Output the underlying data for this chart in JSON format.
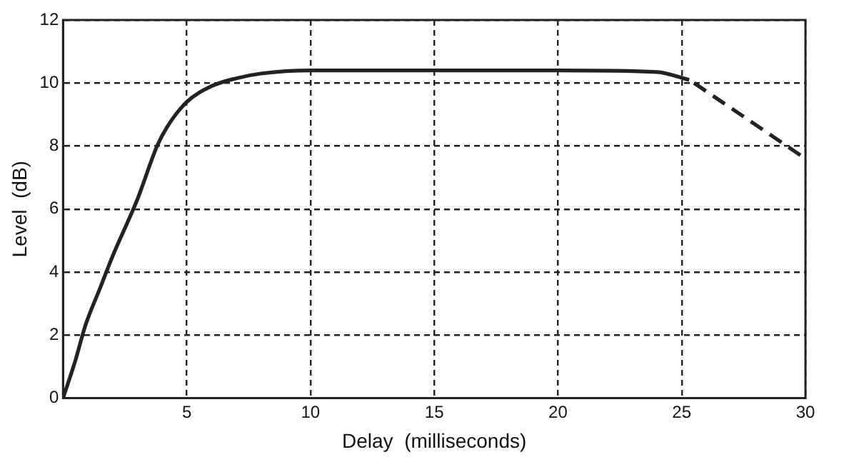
{
  "chart_data": {
    "type": "line",
    "xlabel": "Delay  (milliseconds)",
    "ylabel": "Level  (dB)",
    "xlim": [
      0,
      30
    ],
    "ylim": [
      0,
      12
    ],
    "xticks": [
      {
        "value": 0,
        "label": null
      },
      5,
      10,
      15,
      20,
      25,
      30
    ],
    "yticks": [
      0,
      2,
      4,
      6,
      8,
      10,
      12
    ],
    "grid": true,
    "legend": false,
    "marker": "none",
    "series": [
      {
        "color": "#222222",
        "line_style": "solid",
        "x": [
          0,
          0.5,
          0.9,
          1.5,
          2,
          3,
          3.8,
          4.2,
          5,
          6,
          7,
          8,
          10,
          15,
          20,
          24,
          25.3
        ],
        "values": [
          0,
          1.2,
          2.3,
          3.5,
          4.5,
          6.3,
          8,
          8.6,
          9.4,
          9.9,
          10.15,
          10.3,
          10.4,
          10.4,
          10.4,
          10.35,
          10.1
        ]
      },
      {
        "color": "#222222",
        "line_style": "dashed",
        "x": [
          25.5,
          27,
          28.5,
          30
        ],
        "values": [
          10,
          9.2,
          8.4,
          7.6
        ]
      }
    ]
  }
}
